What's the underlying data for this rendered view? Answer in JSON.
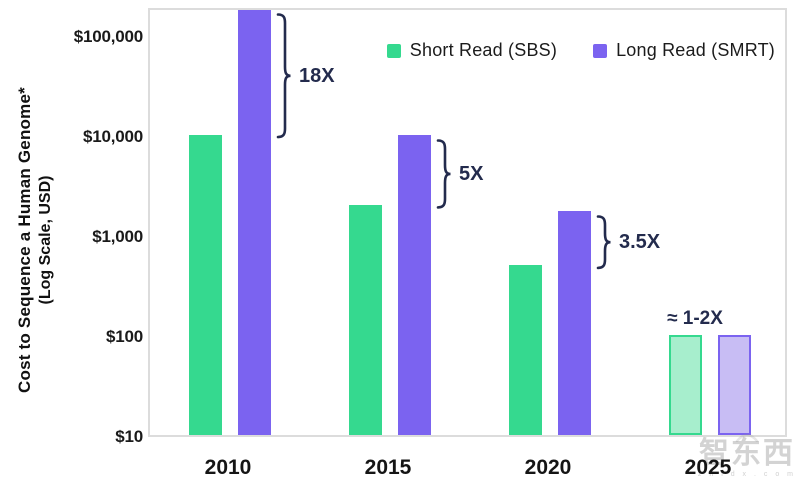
{
  "watermark": {
    "text": "智东西",
    "subtext": "z h i d x . c o m"
  },
  "chart_data": {
    "type": "bar",
    "title": "",
    "xlabel": "",
    "ylabel_line1": "Cost to Sequence a Human Genome*",
    "ylabel_line2": "(Log Scale, USD)",
    "log_scale": true,
    "ylim": [
      10,
      200000
    ],
    "grid": false,
    "legend_position": "top-right",
    "annotation_color": "#232b4d",
    "categories": [
      "2010",
      "2015",
      "2020",
      "2025"
    ],
    "series": [
      {
        "name": "Short Read (SBS)",
        "color": "#35d98f",
        "light_color": "#a7eecd",
        "values": [
          10000,
          2000,
          500,
          100
        ]
      },
      {
        "name": "Long Read (SMRT)",
        "color": "#7b63f0",
        "light_color": "#c8bdf4",
        "values": [
          180000,
          10000,
          1750,
          100
        ]
      }
    ],
    "projected_category": "2025",
    "annotations": [
      {
        "category_index": 0,
        "label": "18X",
        "style": "brace"
      },
      {
        "category_index": 1,
        "label": "5X",
        "style": "brace"
      },
      {
        "category_index": 2,
        "label": "3.5X",
        "style": "brace"
      },
      {
        "category_index": 3,
        "label": "≈ 1-2X",
        "style": "text"
      }
    ],
    "yticks": [
      {
        "label": "$100,000",
        "value": 100000
      },
      {
        "label": "$10,000",
        "value": 10000
      },
      {
        "label": "$1,000",
        "value": 1000
      },
      {
        "label": "$100",
        "value": 100
      },
      {
        "label": "$10",
        "value": 10
      }
    ]
  }
}
